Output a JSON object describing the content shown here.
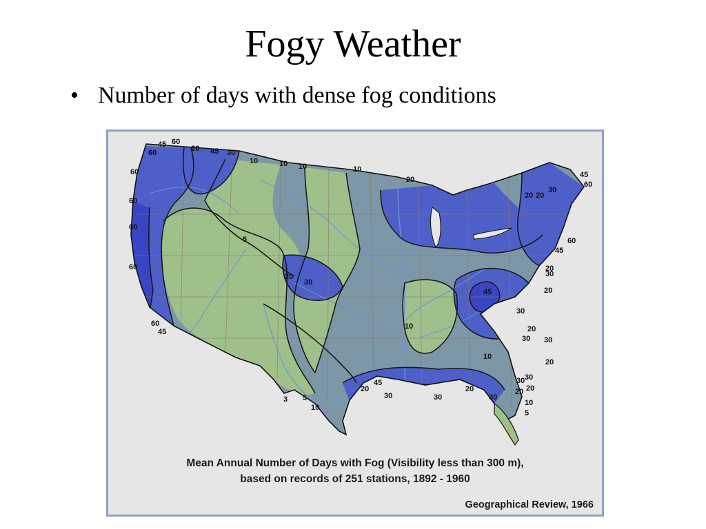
{
  "slide": {
    "title": "Fogy Weather",
    "bullet_marker": "•",
    "bullet": "Number of days with dense fog conditions"
  },
  "figure": {
    "caption_line1": "Mean Annual Number of Days with Fog (Visibility less than 300 m),",
    "caption_line2": "based on records of 251 stations, 1892 - 1960",
    "source": "Geographical Review, 1966"
  },
  "map": {
    "colors": {
      "low_fog": "#9fc08a",
      "mid_fog": "#7e97a6",
      "high_fog": "#4e5fc8",
      "very_high_fog": "#3a45c4",
      "contour": "#1a1a1a",
      "river": "#6f8fd8",
      "state_border": "#8a7a70"
    },
    "contour_labels": [
      {
        "text": "45"
      },
      {
        "text": "60"
      },
      {
        "text": "60"
      },
      {
        "text": "20"
      },
      {
        "text": "45"
      },
      {
        "text": "30"
      },
      {
        "text": "10"
      },
      {
        "text": "10"
      },
      {
        "text": "10"
      },
      {
        "text": "10"
      },
      {
        "text": "20"
      },
      {
        "text": "60"
      },
      {
        "text": "60"
      },
      {
        "text": "60"
      },
      {
        "text": "60"
      },
      {
        "text": "5"
      },
      {
        "text": "20"
      },
      {
        "text": "30"
      },
      {
        "text": "60"
      },
      {
        "text": "45"
      },
      {
        "text": "10"
      },
      {
        "text": "3"
      },
      {
        "text": "5"
      },
      {
        "text": "10"
      },
      {
        "text": "30"
      },
      {
        "text": "20"
      },
      {
        "text": "45"
      },
      {
        "text": "30"
      },
      {
        "text": "20"
      },
      {
        "text": "30"
      },
      {
        "text": "20"
      },
      {
        "text": "30"
      },
      {
        "text": "10"
      },
      {
        "text": "45"
      },
      {
        "text": "30"
      },
      {
        "text": "20"
      },
      {
        "text": "30"
      },
      {
        "text": "20"
      },
      {
        "text": "30"
      },
      {
        "text": "20"
      },
      {
        "text": "10"
      },
      {
        "text": "5"
      },
      {
        "text": "30"
      },
      {
        "text": "20"
      },
      {
        "text": "20"
      },
      {
        "text": "30"
      },
      {
        "text": "45"
      },
      {
        "text": "60"
      },
      {
        "text": "20"
      },
      {
        "text": "20"
      },
      {
        "text": "30"
      },
      {
        "text": "60"
      },
      {
        "text": "45"
      }
    ]
  }
}
